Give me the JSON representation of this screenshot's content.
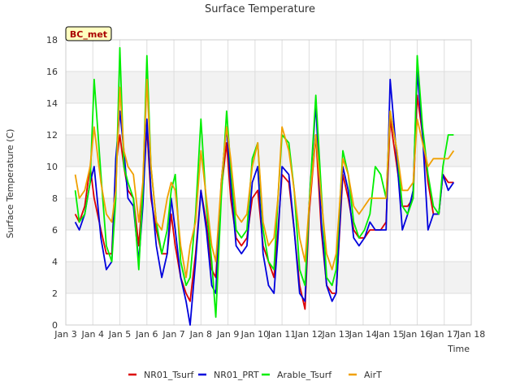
{
  "chart_data": {
    "type": "line",
    "title": "Surface Temperature",
    "xlabel": "Time",
    "ylabel": "Surface Temperature (C)",
    "badge": "BC_met",
    "xlim": [
      3,
      18
    ],
    "ylim": [
      0,
      18
    ],
    "x_ticks": [
      3,
      4,
      5,
      6,
      7,
      8,
      9,
      10,
      11,
      12,
      13,
      14,
      15,
      16,
      17,
      18
    ],
    "x_tick_labels": [
      "Jan 3",
      "Jan 4",
      "Jan 5",
      "Jan 6",
      "Jan 7",
      "Jan 8",
      "Jan 9",
      "Jan 10",
      "Jan 11",
      "Jan 12",
      "Jan 13",
      "Jan 14",
      "Jan 15",
      "Jan 16",
      "Jan 17",
      "Jan 18"
    ],
    "y_ticks": [
      0,
      2,
      4,
      6,
      8,
      10,
      12,
      14,
      16,
      18
    ],
    "grid": true,
    "legend_position": "bottom",
    "series": [
      {
        "name": "NR01_Tsurf",
        "color": "#dd0000",
        "x": [
          3.35,
          3.5,
          3.7,
          3.9,
          4.05,
          4.3,
          4.5,
          4.7,
          4.85,
          5.0,
          5.15,
          5.3,
          5.5,
          5.7,
          5.85,
          6.0,
          6.15,
          6.35,
          6.55,
          6.75,
          6.9,
          7.05,
          7.25,
          7.45,
          7.6,
          7.8,
          8.0,
          8.2,
          8.4,
          8.55,
          8.75,
          8.95,
          9.1,
          9.3,
          9.5,
          9.7,
          9.9,
          10.1,
          10.3,
          10.5,
          10.7,
          10.85,
          11.0,
          11.25,
          11.45,
          11.65,
          11.85,
          12.0,
          12.25,
          12.45,
          12.65,
          12.85,
          13.0,
          13.25,
          13.45,
          13.65,
          13.85,
          14.05,
          14.25,
          14.45,
          14.65,
          14.85,
          15.0,
          15.25,
          15.45,
          15.65,
          15.85,
          16.0,
          16.2,
          16.4,
          16.6,
          16.8,
          16.95,
          17.15,
          17.35
        ],
        "y": [
          7.0,
          6.5,
          7.5,
          10.0,
          8.0,
          6.0,
          4.5,
          4.5,
          10.0,
          12.0,
          10.0,
          8.5,
          8.0,
          5.0,
          8.5,
          12.5,
          8.0,
          6.0,
          4.5,
          4.5,
          7.0,
          5.0,
          3.0,
          2.0,
          1.5,
          4.5,
          8.5,
          6.5,
          3.5,
          3.0,
          8.5,
          11.5,
          8.0,
          5.5,
          5.0,
          5.5,
          8.0,
          8.5,
          5.0,
          4.0,
          3.0,
          6.0,
          9.5,
          9.0,
          6.0,
          2.5,
          1.0,
          7.0,
          12.0,
          6.0,
          2.5,
          2.0,
          2.0,
          9.5,
          8.0,
          6.0,
          5.5,
          5.5,
          6.0,
          6.0,
          6.0,
          6.5,
          13.0,
          10.0,
          7.5,
          7.5,
          8.0,
          14.5,
          12.0,
          9.0,
          7.0,
          7.0,
          9.5,
          9.0,
          9.0
        ]
      },
      {
        "name": "NR01_PRT",
        "color": "#0000dd",
        "x": [
          3.35,
          3.5,
          3.7,
          3.9,
          4.05,
          4.3,
          4.5,
          4.7,
          4.85,
          5.0,
          5.15,
          5.3,
          5.5,
          5.7,
          5.85,
          6.0,
          6.15,
          6.35,
          6.55,
          6.75,
          6.9,
          7.05,
          7.25,
          7.45,
          7.6,
          7.8,
          8.0,
          8.2,
          8.4,
          8.55,
          8.75,
          8.95,
          9.1,
          9.3,
          9.5,
          9.7,
          9.9,
          10.1,
          10.3,
          10.5,
          10.7,
          10.85,
          11.0,
          11.25,
          11.45,
          11.65,
          11.85,
          12.0,
          12.25,
          12.45,
          12.65,
          12.85,
          13.0,
          13.25,
          13.45,
          13.65,
          13.85,
          14.05,
          14.25,
          14.45,
          14.65,
          14.85,
          15.0,
          15.25,
          15.45,
          15.65,
          15.85,
          16.0,
          16.2,
          16.4,
          16.6,
          16.8,
          16.95,
          17.15,
          17.35
        ],
        "y": [
          6.5,
          6.0,
          7.0,
          9.0,
          10.0,
          5.5,
          3.5,
          4.0,
          10.5,
          13.5,
          11.0,
          8.0,
          7.5,
          4.0,
          7.5,
          13.0,
          8.5,
          5.0,
          3.0,
          4.5,
          8.0,
          6.0,
          3.0,
          1.5,
          0.0,
          4.0,
          8.5,
          6.0,
          2.5,
          2.0,
          9.0,
          12.5,
          9.0,
          5.0,
          4.5,
          5.0,
          9.0,
          10.0,
          4.5,
          2.5,
          2.0,
          5.5,
          10.0,
          9.5,
          6.0,
          2.0,
          1.5,
          7.5,
          14.0,
          6.5,
          2.5,
          1.5,
          2.0,
          10.0,
          8.5,
          5.5,
          5.0,
          5.5,
          6.5,
          6.0,
          6.0,
          6.0,
          15.5,
          10.5,
          6.0,
          7.0,
          8.5,
          16.0,
          12.0,
          6.0,
          7.0,
          7.0,
          9.5,
          8.5,
          9.0
        ]
      },
      {
        "name": "Arable_Tsurf",
        "color": "#00ee00",
        "x": [
          3.35,
          3.5,
          3.7,
          3.9,
          4.05,
          4.3,
          4.5,
          4.7,
          4.85,
          5.0,
          5.15,
          5.3,
          5.5,
          5.7,
          5.85,
          6.0,
          6.15,
          6.35,
          6.55,
          6.75,
          6.9,
          7.05,
          7.25,
          7.45,
          7.6,
          7.8,
          8.0,
          8.2,
          8.4,
          8.55,
          8.75,
          8.95,
          9.1,
          9.3,
          9.5,
          9.7,
          9.9,
          10.1,
          10.3,
          10.5,
          10.7,
          10.85,
          11.0,
          11.25,
          11.45,
          11.65,
          11.85,
          12.0,
          12.25,
          12.45,
          12.65,
          12.85,
          13.0,
          13.25,
          13.45,
          13.65,
          13.85,
          14.05,
          14.25,
          14.45,
          14.65,
          14.85,
          15.0,
          15.25,
          15.45,
          15.65,
          15.85,
          16.0,
          16.2,
          16.4,
          16.6,
          16.8,
          16.95,
          17.15,
          17.35
        ],
        "y": [
          8.5,
          6.5,
          7.0,
          9.0,
          15.5,
          9.5,
          5.0,
          4.0,
          8.0,
          17.5,
          10.0,
          9.0,
          8.0,
          3.5,
          8.5,
          17.0,
          10.0,
          6.5,
          4.5,
          6.0,
          8.5,
          9.5,
          4.0,
          2.5,
          3.0,
          7.0,
          13.0,
          7.5,
          4.0,
          0.5,
          8.0,
          13.5,
          10.0,
          6.0,
          5.5,
          6.0,
          10.5,
          11.5,
          6.0,
          4.0,
          3.5,
          8.0,
          12.0,
          11.5,
          8.5,
          3.5,
          2.5,
          7.5,
          14.5,
          8.5,
          3.0,
          2.5,
          3.5,
          11.0,
          9.5,
          6.5,
          5.5,
          6.0,
          7.0,
          10.0,
          9.5,
          8.0,
          13.5,
          11.0,
          7.5,
          7.0,
          8.0,
          17.0,
          12.5,
          9.5,
          7.5,
          7.0,
          10.0,
          12.0,
          12.0
        ]
      },
      {
        "name": "AirT",
        "color": "#f0a000",
        "x": [
          3.35,
          3.5,
          3.7,
          3.9,
          4.05,
          4.3,
          4.5,
          4.7,
          4.85,
          5.0,
          5.15,
          5.3,
          5.5,
          5.7,
          5.85,
          6.0,
          6.15,
          6.35,
          6.55,
          6.75,
          6.9,
          7.05,
          7.25,
          7.45,
          7.6,
          7.8,
          8.0,
          8.2,
          8.4,
          8.55,
          8.75,
          8.95,
          9.1,
          9.3,
          9.5,
          9.7,
          9.9,
          10.1,
          10.3,
          10.5,
          10.7,
          10.85,
          11.0,
          11.25,
          11.45,
          11.65,
          11.85,
          12.0,
          12.25,
          12.45,
          12.65,
          12.85,
          13.0,
          13.25,
          13.45,
          13.65,
          13.85,
          14.05,
          14.25,
          14.45,
          14.65,
          14.85,
          15.0,
          15.25,
          15.45,
          15.65,
          15.85,
          16.0,
          16.2,
          16.4,
          16.6,
          16.8,
          16.95,
          17.15,
          17.35
        ],
        "y": [
          9.5,
          8.0,
          8.5,
          10.0,
          12.5,
          9.0,
          7.0,
          6.5,
          8.5,
          15.0,
          11.0,
          10.0,
          9.5,
          6.5,
          9.0,
          15.5,
          10.0,
          6.5,
          6.0,
          8.0,
          9.0,
          8.5,
          5.0,
          3.0,
          5.0,
          6.5,
          11.0,
          8.0,
          5.0,
          4.0,
          9.0,
          12.5,
          10.5,
          7.0,
          6.5,
          7.0,
          10.0,
          11.5,
          6.5,
          5.0,
          5.5,
          8.0,
          12.5,
          11.0,
          8.5,
          5.5,
          4.0,
          7.5,
          12.0,
          8.0,
          4.5,
          3.5,
          4.5,
          10.5,
          9.5,
          7.5,
          7.0,
          7.5,
          8.0,
          8.0,
          8.0,
          8.0,
          13.5,
          11.0,
          8.5,
          8.5,
          9.0,
          13.0,
          11.5,
          10.0,
          10.5,
          10.5,
          10.5,
          10.5,
          11.0
        ]
      }
    ]
  }
}
